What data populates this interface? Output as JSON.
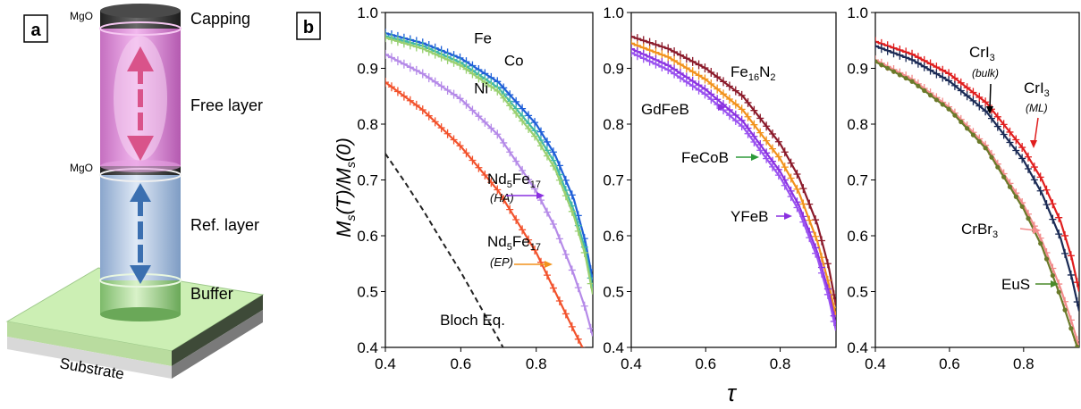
{
  "panel_a": {
    "label": "a",
    "layers": {
      "mgo_top": "MgO",
      "capping": "Capping",
      "free_layer": "Free layer",
      "mgo_mid": "MgO",
      "ref_layer": "Ref. layer",
      "buffer": "Buffer",
      "substrate": "Substrate"
    },
    "colors": {
      "free": "#e48ad8",
      "ref": "#a9c2e3",
      "buffer": "#8fd07a",
      "substrate": "#c9f0b0",
      "cap": "#3a3a3a",
      "arrow_free": "#d9538a",
      "arrow_ref": "#3b6fb0"
    }
  },
  "panel_b": {
    "label": "b",
    "ylabel_main": "M",
    "ylabel_sub": "s",
    "ylabel_tail1": "(T)/M",
    "ylabel_tail2": "(0)",
    "xlabel": "τ"
  },
  "chart_data": [
    {
      "type": "line",
      "xlim": [
        0.4,
        0.95
      ],
      "ylim": [
        0.4,
        1.0
      ],
      "xticks": [
        "0.4",
        "0.6",
        "0.8"
      ],
      "yticks": [
        "0.4",
        "0.5",
        "0.6",
        "0.7",
        "0.8",
        "0.9",
        "1.0"
      ],
      "series": [
        {
          "name": "Fe",
          "color": "#1f5fd8",
          "marker": "plus",
          "x": [
            0.4,
            0.5,
            0.6,
            0.7,
            0.8,
            0.85,
            0.9,
            0.93,
            0.95
          ],
          "y": [
            0.963,
            0.945,
            0.918,
            0.875,
            0.8,
            0.745,
            0.665,
            0.59,
            0.52
          ]
        },
        {
          "name": "Co",
          "color": "#3fb8a8",
          "marker": "plus",
          "x": [
            0.4,
            0.5,
            0.6,
            0.7,
            0.8,
            0.85,
            0.9,
            0.93,
            0.95
          ],
          "y": [
            0.958,
            0.94,
            0.91,
            0.865,
            0.785,
            0.73,
            0.645,
            0.575,
            0.505
          ]
        },
        {
          "name": "Ni",
          "color": "#9ad070",
          "marker": "plus",
          "x": [
            0.4,
            0.5,
            0.6,
            0.7,
            0.8,
            0.85,
            0.9,
            0.93,
            0.95
          ],
          "y": [
            0.955,
            0.935,
            0.905,
            0.858,
            0.775,
            0.72,
            0.635,
            0.565,
            0.495
          ]
        },
        {
          "name": "Nd5Fe17 (HA)",
          "color": "#b58ae8",
          "marker": "plus",
          "x": [
            0.4,
            0.5,
            0.6,
            0.7,
            0.8,
            0.85,
            0.9,
            0.93,
            0.95
          ],
          "y": [
            0.925,
            0.89,
            0.845,
            0.78,
            0.68,
            0.615,
            0.53,
            0.47,
            0.42
          ]
        },
        {
          "name": "Nd5Fe17 (EP)",
          "color": "#f2522c",
          "marker": "plus",
          "x": [
            0.4,
            0.5,
            0.6,
            0.7,
            0.8,
            0.85,
            0.9,
            0.93
          ],
          "y": [
            0.875,
            0.825,
            0.76,
            0.68,
            0.57,
            0.5,
            0.43,
            0.39
          ]
        },
        {
          "name": "Bloch Eq.",
          "color": "#222222",
          "marker": "none",
          "dash": true,
          "x": [
            0.4,
            0.45,
            0.5,
            0.55,
            0.6,
            0.65,
            0.7,
            0.72
          ],
          "y": [
            0.747,
            0.698,
            0.646,
            0.59,
            0.535,
            0.475,
            0.415,
            0.39
          ]
        }
      ],
      "annotations": [
        {
          "text": "Fe",
          "x": 0.635,
          "y": 0.945
        },
        {
          "text": "Co",
          "x": 0.715,
          "y": 0.905
        },
        {
          "text": "Ni",
          "x": 0.635,
          "y": 0.855
        },
        {
          "text": "Bloch Eq.",
          "x": 0.545,
          "y": 0.44
        }
      ]
    },
    {
      "type": "line",
      "xlim": [
        0.4,
        0.95
      ],
      "ylim": [
        0.4,
        1.0
      ],
      "xticks": [
        "0.4",
        "0.6",
        "0.8"
      ],
      "yticks": [
        "0.4",
        "0.5",
        "0.6",
        "0.7",
        "0.8",
        "0.9",
        "1.0"
      ],
      "series": [
        {
          "name": "Fe16N2",
          "color": "#8b1a2a",
          "marker": "plus",
          "x": [
            0.4,
            0.5,
            0.6,
            0.7,
            0.8,
            0.85,
            0.9,
            0.93,
            0.95
          ],
          "y": [
            0.957,
            0.935,
            0.9,
            0.85,
            0.765,
            0.705,
            0.62,
            0.545,
            0.475
          ]
        },
        {
          "name": "FeCoB",
          "color": "#f2921c",
          "marker": "plus",
          "x": [
            0.4,
            0.5,
            0.6,
            0.7,
            0.8,
            0.85,
            0.9,
            0.93,
            0.95
          ],
          "y": [
            0.945,
            0.92,
            0.88,
            0.825,
            0.738,
            0.678,
            0.59,
            0.515,
            0.455
          ]
        },
        {
          "name": "GdFeB",
          "color": "#8a30e0",
          "marker": "plus",
          "x": [
            0.4,
            0.5,
            0.6,
            0.7,
            0.8,
            0.85,
            0.9,
            0.93,
            0.95
          ],
          "y": [
            0.935,
            0.905,
            0.862,
            0.805,
            0.715,
            0.655,
            0.57,
            0.5,
            0.44
          ]
        },
        {
          "name": "YFeB",
          "color": "#9a52f0",
          "marker": "plus",
          "x": [
            0.4,
            0.5,
            0.6,
            0.7,
            0.8,
            0.85,
            0.9,
            0.93,
            0.95
          ],
          "y": [
            0.928,
            0.897,
            0.853,
            0.795,
            0.705,
            0.645,
            0.56,
            0.49,
            0.43
          ]
        }
      ]
    },
    {
      "type": "line",
      "xlim": [
        0.4,
        0.95
      ],
      "ylim": [
        0.4,
        1.0
      ],
      "xticks": [
        "0.4",
        "0.6",
        "0.8"
      ],
      "yticks": [
        "0.4",
        "0.5",
        "0.6",
        "0.7",
        "0.8",
        "0.9",
        "1.0"
      ],
      "series": [
        {
          "name": "CrI3 (ML)",
          "color": "#e01e1e",
          "marker": "plus",
          "x": [
            0.4,
            0.5,
            0.6,
            0.7,
            0.8,
            0.85,
            0.9,
            0.93,
            0.95
          ],
          "y": [
            0.948,
            0.925,
            0.89,
            0.838,
            0.755,
            0.7,
            0.625,
            0.56,
            0.5
          ]
        },
        {
          "name": "CrI3 (bulk)",
          "color": "#1a2a55",
          "marker": "plus",
          "x": [
            0.4,
            0.5,
            0.6,
            0.7,
            0.8,
            0.85,
            0.9,
            0.93,
            0.95
          ],
          "y": [
            0.94,
            0.915,
            0.877,
            0.822,
            0.735,
            0.675,
            0.595,
            0.525,
            0.465
          ]
        },
        {
          "name": "CrBr3",
          "color": "#f28b8b",
          "marker": "plus",
          "x": [
            0.4,
            0.5,
            0.6,
            0.7,
            0.8,
            0.85,
            0.9,
            0.93,
            0.95
          ],
          "y": [
            0.915,
            0.88,
            0.83,
            0.76,
            0.655,
            0.59,
            0.505,
            0.445,
            0.4
          ]
        },
        {
          "name": "EuS",
          "color": "#6a7a2a",
          "marker": "dot",
          "x": [
            0.4,
            0.5,
            0.6,
            0.7,
            0.8,
            0.85,
            0.9,
            0.93,
            0.95
          ],
          "y": [
            0.912,
            0.876,
            0.826,
            0.755,
            0.648,
            0.58,
            0.49,
            0.43,
            0.39
          ]
        }
      ]
    }
  ],
  "labels": {
    "nd_ha": {
      "main": "Nd",
      "s1": "5",
      "mid": "Fe",
      "s2": "17",
      "tag": "(HA)"
    },
    "nd_ep": {
      "main": "Nd",
      "s1": "5",
      "mid": "Fe",
      "s2": "17",
      "tag": "(EP)"
    },
    "fe16n2": {
      "main": "Fe",
      "s1": "16",
      "mid": "N",
      "s2": "2"
    },
    "gdfeb": "GdFeB",
    "fecob": "FeCoB",
    "yfeb": "YFeB",
    "cri3_bulk": {
      "main": "CrI",
      "s1": "3",
      "tag": "(bulk)"
    },
    "cri3_ml": {
      "main": "CrI",
      "s1": "3",
      "tag": "(ML)"
    },
    "crbr3": {
      "main": "CrBr",
      "s1": "3"
    },
    "eus": "EuS"
  }
}
